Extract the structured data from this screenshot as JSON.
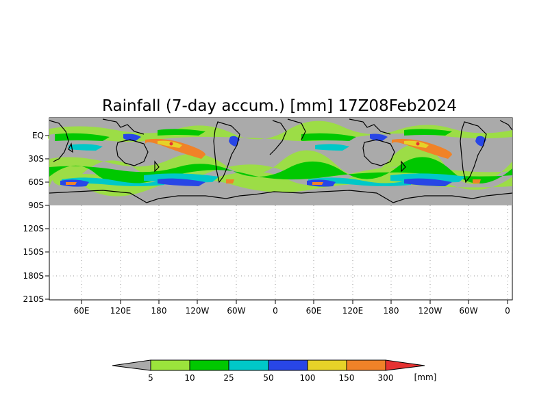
{
  "title": "Rainfall (7-day accum.) [mm] 17Z08Feb2024",
  "y_ticks": [
    "EQ",
    "30S",
    "60S",
    "90S",
    "120S",
    "150S",
    "180S",
    "210S"
  ],
  "x_ticks": [
    "60E",
    "120E",
    "180",
    "120W",
    "60W",
    "0",
    "60E",
    "120E",
    "180",
    "120W",
    "60W",
    "0"
  ],
  "colorbar": {
    "unit": "[mm]",
    "labels": [
      "5",
      "10",
      "25",
      "50",
      "100",
      "150",
      "300"
    ],
    "colors": [
      "#9be33c",
      "#00c800",
      "#00c8c8",
      "#2846e6",
      "#e6d228",
      "#f08228",
      "#e63232"
    ],
    "under_color": "#aaaaaa"
  },
  "colors": {
    "ocean_no_rain": "#aaaaaa",
    "coastline": "#000000",
    "grid": "#999999"
  }
}
